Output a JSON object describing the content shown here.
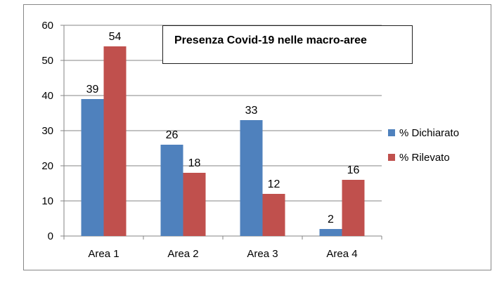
{
  "chart_data": {
    "type": "bar",
    "title": "Presenza Covid-19 nelle macro-aree",
    "categories": [
      "Area 1",
      "Area 2",
      "Area 3",
      "Area 4"
    ],
    "series": [
      {
        "name": "% Dichiarato",
        "values": [
          39,
          26,
          33,
          2
        ],
        "color": "#4f81bd"
      },
      {
        "name": "% Rilevato",
        "values": [
          54,
          18,
          12,
          16
        ],
        "color": "#c0504d"
      }
    ],
    "ylim": [
      0,
      60
    ],
    "yticks": [
      0,
      10,
      20,
      30,
      40,
      50,
      60
    ],
    "grid": true,
    "legend_position": "right"
  }
}
